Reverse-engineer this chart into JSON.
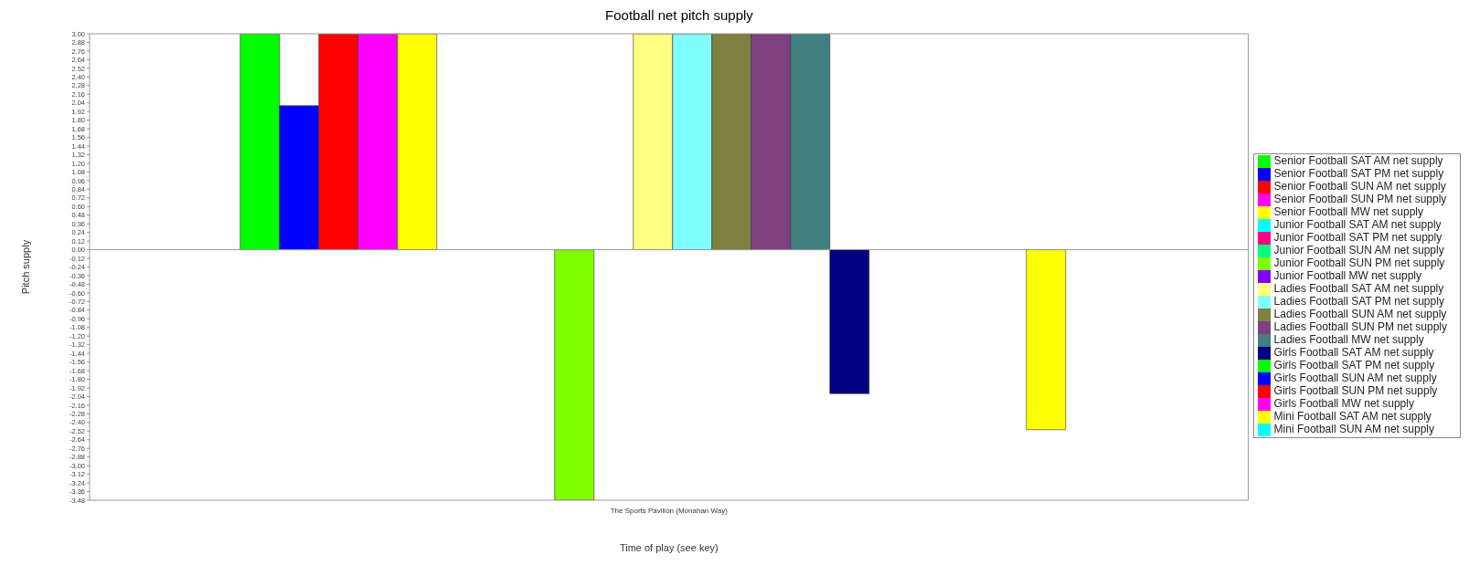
{
  "chart_data": {
    "type": "bar",
    "title": "Football net pitch supply",
    "xlabel": "Time of play (see key)",
    "ylabel": "Pitch supply",
    "categories": [
      "The Sports Pavilion (Monahan Way)"
    ],
    "series": [
      {
        "name": "Senior Football SAT AM net supply",
        "color": "#00ff00",
        "values": [
          3
        ]
      },
      {
        "name": "Senior Football SAT PM net supply",
        "color": "#0000ff",
        "values": [
          2
        ]
      },
      {
        "name": "Senior Football SUN AM net supply",
        "color": "#ff0000",
        "values": [
          3
        ]
      },
      {
        "name": "Senior Football SUN PM net supply",
        "color": "#ff00ff",
        "values": [
          3
        ]
      },
      {
        "name": "Senior Football MW net supply",
        "color": "#ffff00",
        "values": [
          3
        ]
      },
      {
        "name": "Junior Football SAT AM net supply",
        "color": "#00ffff",
        "values": [
          0
        ]
      },
      {
        "name": "Junior Football SAT PM net supply",
        "color": "#ff0080",
        "values": [
          0
        ]
      },
      {
        "name": "Junior Football SUN AM net supply",
        "color": "#00ff80",
        "values": [
          0
        ]
      },
      {
        "name": "Junior Football SUN PM net supply",
        "color": "#80ff00",
        "values": [
          -3.48
        ]
      },
      {
        "name": "Junior Football MW net supply",
        "color": "#8000ff",
        "values": [
          0
        ]
      },
      {
        "name": "Ladies Football SAT AM net supply",
        "color": "#ffff80",
        "values": [
          3
        ]
      },
      {
        "name": "Ladies Football SAT PM net supply",
        "color": "#80ffff",
        "values": [
          3
        ]
      },
      {
        "name": "Ladies Football SUN AM net supply",
        "color": "#808040",
        "values": [
          3
        ]
      },
      {
        "name": "Ladies Football SUN PM net supply",
        "color": "#804080",
        "values": [
          3
        ]
      },
      {
        "name": "Ladies Football MW net supply",
        "color": "#408080",
        "values": [
          3
        ]
      },
      {
        "name": "Girls Football SAT AM net supply",
        "color": "#000080",
        "values": [
          -2
        ]
      },
      {
        "name": "Girls Football SAT PM net supply",
        "color": "#00ff00",
        "values": [
          0
        ]
      },
      {
        "name": "Girls Football SUN AM net supply",
        "color": "#0000ff",
        "values": [
          0
        ]
      },
      {
        "name": "Girls Football SUN PM net supply",
        "color": "#ff0000",
        "values": [
          0
        ]
      },
      {
        "name": "Girls Football MW net supply",
        "color": "#ff00ff",
        "values": [
          0
        ]
      },
      {
        "name": "Mini Football SAT AM net supply",
        "color": "#ffff00",
        "values": [
          -2.5
        ]
      },
      {
        "name": "Mini Football SUN AM net supply",
        "color": "#00ffff",
        "values": [
          0
        ]
      }
    ],
    "ylim": [
      -3.48,
      3
    ],
    "yticks": [
      {
        "value": 3,
        "label": "3.00"
      },
      2.88,
      2.76,
      2.64,
      2.52,
      {
        "value": 2.4,
        "label": "2.40"
      },
      2.28,
      2.16,
      2.04,
      1.92,
      {
        "value": 1.8,
        "label": "1.80"
      },
      1.68,
      1.56,
      1.44,
      1.32,
      {
        "value": 1.2,
        "label": "1.20"
      },
      1.08,
      0.96,
      0.84,
      0.72,
      {
        "value": 0.6,
        "label": "0.60"
      },
      0.48,
      0.36,
      0.24,
      0.12,
      {
        "value": 0,
        "label": "0.00"
      },
      -0.12,
      -0.24,
      -0.36,
      -0.48,
      {
        "value": -0.6,
        "label": "-0.60"
      },
      -0.72,
      -0.84,
      -0.96,
      -1.08,
      {
        "value": -1.2,
        "label": "-1.20"
      },
      -1.32,
      -1.44,
      -1.56,
      -1.68,
      {
        "value": -1.8,
        "label": "-1.80"
      },
      -1.92,
      -2.04,
      -2.16,
      -2.28,
      {
        "value": -2.4,
        "label": "-2.40"
      },
      -2.52,
      -2.64,
      -2.76,
      -2.88,
      {
        "value": -3,
        "label": "-3.00"
      },
      -3.12,
      -3.24,
      -3.36,
      -3.48
    ],
    "legend": "right"
  }
}
